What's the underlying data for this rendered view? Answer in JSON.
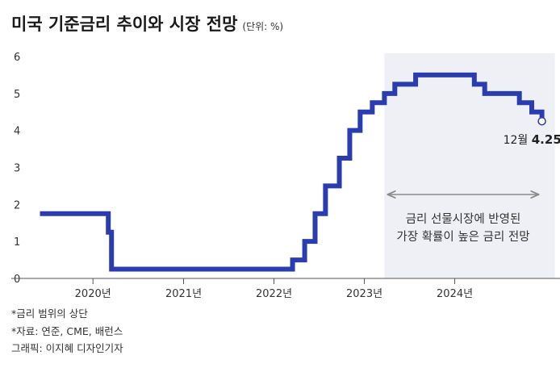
{
  "title": "미국 기준금리 추이와 시장 전망",
  "unit": "(단위: %)",
  "notes": {
    "upper_bound": "*금리 범위의 상단",
    "source": "*자료: 연준, CME, 배런스",
    "graphic": "그래픽: 이지혜 디자인기자"
  },
  "colors": {
    "line": "#2a3db0",
    "forecast_band": "#eef0f6",
    "axis": "#555555",
    "annotation_arrow": "#8a8a8a"
  },
  "chart_data": {
    "type": "line",
    "title": "미국 기준금리 추이와 시장 전망",
    "ylabel": "",
    "xlabel": "",
    "ylim": [
      0,
      6
    ],
    "xlim": [
      "2019-05-01",
      "2025-03-01"
    ],
    "yticks": [
      "0",
      "1",
      "2",
      "3",
      "4",
      "5",
      "6"
    ],
    "yticks_values": [
      0,
      1,
      2,
      3,
      4,
      5,
      6
    ],
    "xticks": [
      {
        "date": "2020-01-01",
        "label": "2020년"
      },
      {
        "date": "2021-01-01",
        "label": "2021년"
      },
      {
        "date": "2022-01-01",
        "label": "2022년"
      },
      {
        "date": "2023-01-01",
        "label": "2023년"
      },
      {
        "date": "2024-01-01",
        "label": "2024년"
      }
    ],
    "grid": false,
    "step": true,
    "series": [
      {
        "points": [
          [
            "2019-06-01",
            1.75
          ],
          [
            "2020-03-03",
            1.25
          ],
          [
            "2020-03-16",
            0.25
          ],
          [
            "2022-03-17",
            0.5
          ],
          [
            "2022-05-05",
            1.0
          ],
          [
            "2022-06-16",
            1.75
          ],
          [
            "2022-07-28",
            2.5
          ],
          [
            "2022-09-22",
            3.25
          ],
          [
            "2022-11-03",
            4.0
          ],
          [
            "2022-12-15",
            4.5
          ],
          [
            "2023-02-02",
            4.75
          ],
          [
            "2023-03-23",
            5.0
          ],
          [
            "2023-05-04",
            5.25
          ],
          [
            "2023-07-27",
            5.5
          ],
          [
            "2024-01-31",
            5.5
          ],
          [
            "2024-03-20",
            5.25
          ],
          [
            "2024-05-01",
            5.0
          ],
          [
            "2024-07-31",
            5.0
          ],
          [
            "2024-09-18",
            4.75
          ],
          [
            "2024-11-07",
            4.5
          ],
          [
            "2024-12-18",
            4.25
          ]
        ]
      }
    ],
    "forecast_band": {
      "start": "2023-03-23",
      "end": "2024-12-18",
      "label_lines": [
        "금리 선물시장에 반영된",
        "가장 확률이 높은 금리 전망"
      ]
    },
    "end_label": {
      "month": "12월",
      "value": "4.25",
      "unit": "%"
    }
  }
}
